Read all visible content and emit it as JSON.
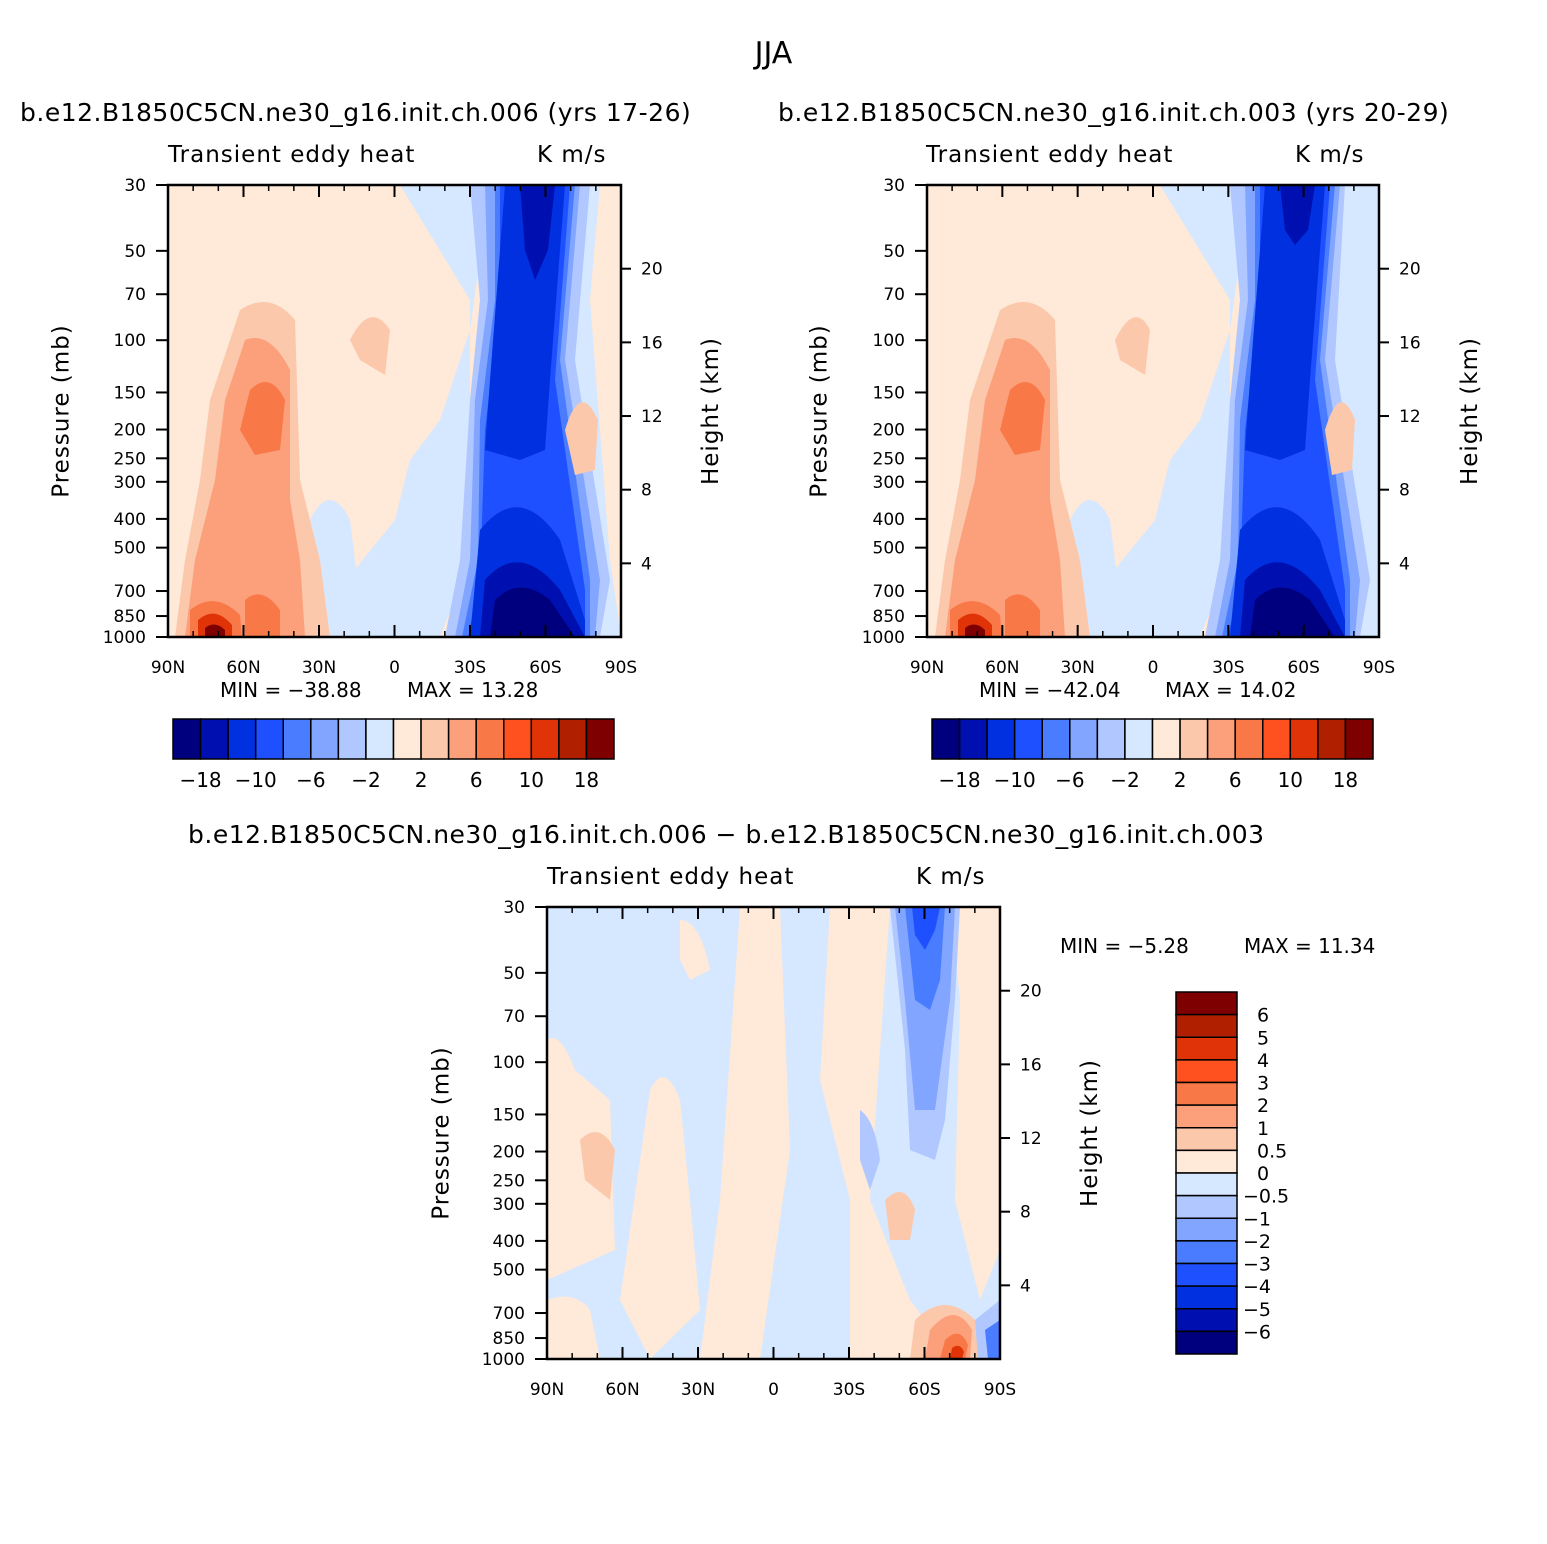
{
  "page": {
    "title": "JJA"
  },
  "legend_colors": [
    "#00007f",
    "#0010b0",
    "#0030e0",
    "#1e50ff",
    "#4a7cff",
    "#82a6ff",
    "#b0c8ff",
    "#d6e8ff",
    "#ffe9d8",
    "#fcc8ac",
    "#fca07c",
    "#f87848",
    "#ff5020",
    "#e03408",
    "#b02000",
    "#7f0000"
  ],
  "chart_data": [
    {
      "type": "heatmap",
      "title": "b.e12.B1850C5CN.ne30_g16.init.ch.006 (yrs 17-26)",
      "subtitle_left": "Transient eddy heat",
      "subtitle_right": "K m/s",
      "xlabel": "",
      "ylabel": "Pressure (mb)",
      "ylabel_right": "Height (km)",
      "x_ticks": [
        "90N",
        "60N",
        "30N",
        "0",
        "30S",
        "60S",
        "90S"
      ],
      "y_ticks": [
        "30",
        "50",
        "70",
        "100",
        "150",
        "200",
        "250",
        "300",
        "400",
        "500",
        "700",
        "850",
        "1000"
      ],
      "y_ticks_right": [
        "20",
        "16",
        "12",
        "8",
        "4"
      ],
      "ylim": [
        1000,
        30
      ],
      "xlim": [
        "90N",
        "90S"
      ],
      "min_label": "MIN = −38.88",
      "max_label": "MAX =  13.28",
      "min": -38.88,
      "max": 13.28,
      "colorbar_labels": [
        "−18",
        "−10",
        "−6",
        "−2",
        "2",
        "6",
        "10",
        "18"
      ],
      "colorbar_orientation": "horizontal"
    },
    {
      "type": "heatmap",
      "title": "b.e12.B1850C5CN.ne30_g16.init.ch.003 (yrs 20-29)",
      "subtitle_left": "Transient eddy heat",
      "subtitle_right": "K m/s",
      "xlabel": "",
      "ylabel": "Pressure (mb)",
      "ylabel_right": "Height (km)",
      "x_ticks": [
        "90N",
        "60N",
        "30N",
        "0",
        "30S",
        "60S",
        "90S"
      ],
      "y_ticks": [
        "30",
        "50",
        "70",
        "100",
        "150",
        "200",
        "250",
        "300",
        "400",
        "500",
        "700",
        "850",
        "1000"
      ],
      "y_ticks_right": [
        "20",
        "16",
        "12",
        "8",
        "4"
      ],
      "ylim": [
        1000,
        30
      ],
      "xlim": [
        "90N",
        "90S"
      ],
      "min_label": "MIN = −42.04",
      "max_label": "MAX =  14.02",
      "min": -42.04,
      "max": 14.02,
      "colorbar_labels": [
        "−18",
        "−10",
        "−6",
        "−2",
        "2",
        "6",
        "10",
        "18"
      ],
      "colorbar_orientation": "horizontal"
    },
    {
      "type": "heatmap",
      "title": "b.e12.B1850C5CN.ne30_g16.init.ch.006 − b.e12.B1850C5CN.ne30_g16.init.ch.003",
      "subtitle_left": "Transient eddy heat",
      "subtitle_right": "K m/s",
      "xlabel": "",
      "ylabel": "Pressure (mb)",
      "ylabel_right": "Height (km)",
      "x_ticks": [
        "90N",
        "60N",
        "30N",
        "0",
        "30S",
        "60S",
        "90S"
      ],
      "y_ticks": [
        "30",
        "50",
        "70",
        "100",
        "150",
        "200",
        "250",
        "300",
        "400",
        "500",
        "700",
        "850",
        "1000"
      ],
      "y_ticks_right": [
        "20",
        "16",
        "12",
        "8",
        "4"
      ],
      "ylim": [
        1000,
        30
      ],
      "xlim": [
        "90N",
        "90S"
      ],
      "min_label": "MIN =   −5.28",
      "max_label": "MAX =   11.34",
      "min": -5.28,
      "max": 11.34,
      "colorbar_labels": [
        "6",
        "5",
        "4",
        "3",
        "2",
        "1",
        "0.5",
        "0",
        "−0.5",
        "−1",
        "−2",
        "−3",
        "−4",
        "−5",
        "−6"
      ],
      "colorbar_orientation": "vertical"
    }
  ]
}
